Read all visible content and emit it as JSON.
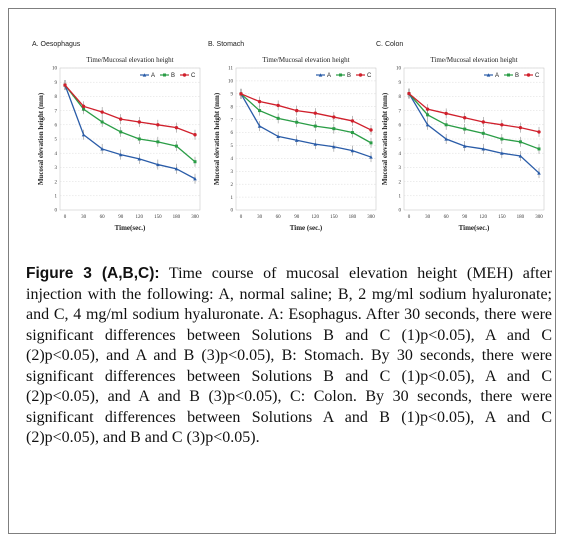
{
  "caption": {
    "figure_label": "Figure 3 (A,B,C):",
    "text": " Time course of mucosal elevation height (MEH) after injection with the following: A, normal saline; B, 2 mg/ml sodium hyaluronate; and C, 4 mg/ml sodium hyaluronate. A: Esophagus. After 30 seconds, there were significant differences between Solutions B and C (1)p<0.05), A and C (2)p<0.05), and A and B (3)p<0.05), B: Stomach. By 30 seconds, there were significant differences between Solutions B and C (1)p<0.05), A and C (2)p<0.05), and A and B (3)p<0.05), C: Colon. By 30 seconds, there were significant differences between Solutions A and B (1)p<0.05), A and C (2)p<0.05), and B and C (3)p<0.05)."
  },
  "colors": {
    "A": "#2a5ca8",
    "B": "#2a9d46",
    "C": "#d0202c",
    "border": "#7f7f7f"
  },
  "chart_data": [
    {
      "type": "line",
      "panel_label": "A. Oesophagus",
      "title": "Time/Mucosal elevation height",
      "xlabel": "Time(sec.)",
      "ylabel": "Mucosal elevation height (mm)",
      "x": [
        0,
        30,
        60,
        90,
        120,
        150,
        180,
        300
      ],
      "xticks": [
        "0",
        "30",
        "60",
        "90",
        "120",
        "150",
        "180",
        "300"
      ],
      "ylim": [
        0,
        10
      ],
      "yticks": [
        "0",
        "1",
        "2",
        "3",
        "4",
        "5",
        "6",
        "7",
        "8",
        "9",
        "10"
      ],
      "legend": "top-right",
      "grid": true,
      "series": [
        {
          "name": "A",
          "values": [
            8.8,
            5.3,
            4.3,
            3.9,
            3.6,
            3.2,
            2.9,
            2.2
          ]
        },
        {
          "name": "B",
          "values": [
            8.8,
            7.1,
            6.2,
            5.5,
            5.0,
            4.8,
            4.5,
            3.4
          ]
        },
        {
          "name": "C",
          "values": [
            8.8,
            7.3,
            6.9,
            6.4,
            6.2,
            6.0,
            5.8,
            5.3
          ]
        }
      ]
    },
    {
      "type": "line",
      "panel_label": "B. Stomach",
      "title": "Time/Mucosal elevation height",
      "xlabel": "Time (sec.)",
      "ylabel": "Mucosal elevation height (mm)",
      "x": [
        0,
        30,
        60,
        90,
        120,
        150,
        180,
        300
      ],
      "xticks": [
        "0",
        "30",
        "60",
        "90",
        "120",
        "150",
        "180",
        "300"
      ],
      "ylim": [
        0,
        11
      ],
      "yticks": [
        "0",
        "1",
        "2",
        "3",
        "4",
        "5",
        "6",
        "7",
        "8",
        "9",
        "10",
        "11"
      ],
      "legend": "top-right",
      "grid": true,
      "series": [
        {
          "name": "A",
          "values": [
            9.0,
            6.5,
            5.7,
            5.4,
            5.1,
            4.9,
            4.6,
            4.1
          ]
        },
        {
          "name": "B",
          "values": [
            9.0,
            7.7,
            7.1,
            6.8,
            6.5,
            6.3,
            6.0,
            5.2
          ]
        },
        {
          "name": "C",
          "values": [
            9.0,
            8.4,
            8.1,
            7.7,
            7.5,
            7.2,
            6.9,
            6.2
          ]
        }
      ]
    },
    {
      "type": "line",
      "panel_label": "C. Colon",
      "title": "Time/Mucosal elevation height",
      "xlabel": "Time(sec.)",
      "ylabel": "Mucosal elevation height (mm)",
      "x": [
        0,
        30,
        60,
        90,
        120,
        150,
        180,
        300
      ],
      "xticks": [
        "0",
        "30",
        "60",
        "90",
        "120",
        "150",
        "180",
        "300"
      ],
      "ylim": [
        0,
        10
      ],
      "yticks": [
        "0",
        "1",
        "2",
        "3",
        "4",
        "5",
        "6",
        "7",
        "8",
        "9",
        "10"
      ],
      "legend": "top-right",
      "grid": true,
      "series": [
        {
          "name": "A",
          "values": [
            8.2,
            6.0,
            5.0,
            4.5,
            4.3,
            4.0,
            3.8,
            2.6
          ]
        },
        {
          "name": "B",
          "values": [
            8.2,
            6.7,
            6.0,
            5.7,
            5.4,
            5.0,
            4.8,
            4.3
          ]
        },
        {
          "name": "C",
          "values": [
            8.2,
            7.1,
            6.8,
            6.5,
            6.2,
            6.0,
            5.8,
            5.5
          ]
        }
      ]
    }
  ]
}
